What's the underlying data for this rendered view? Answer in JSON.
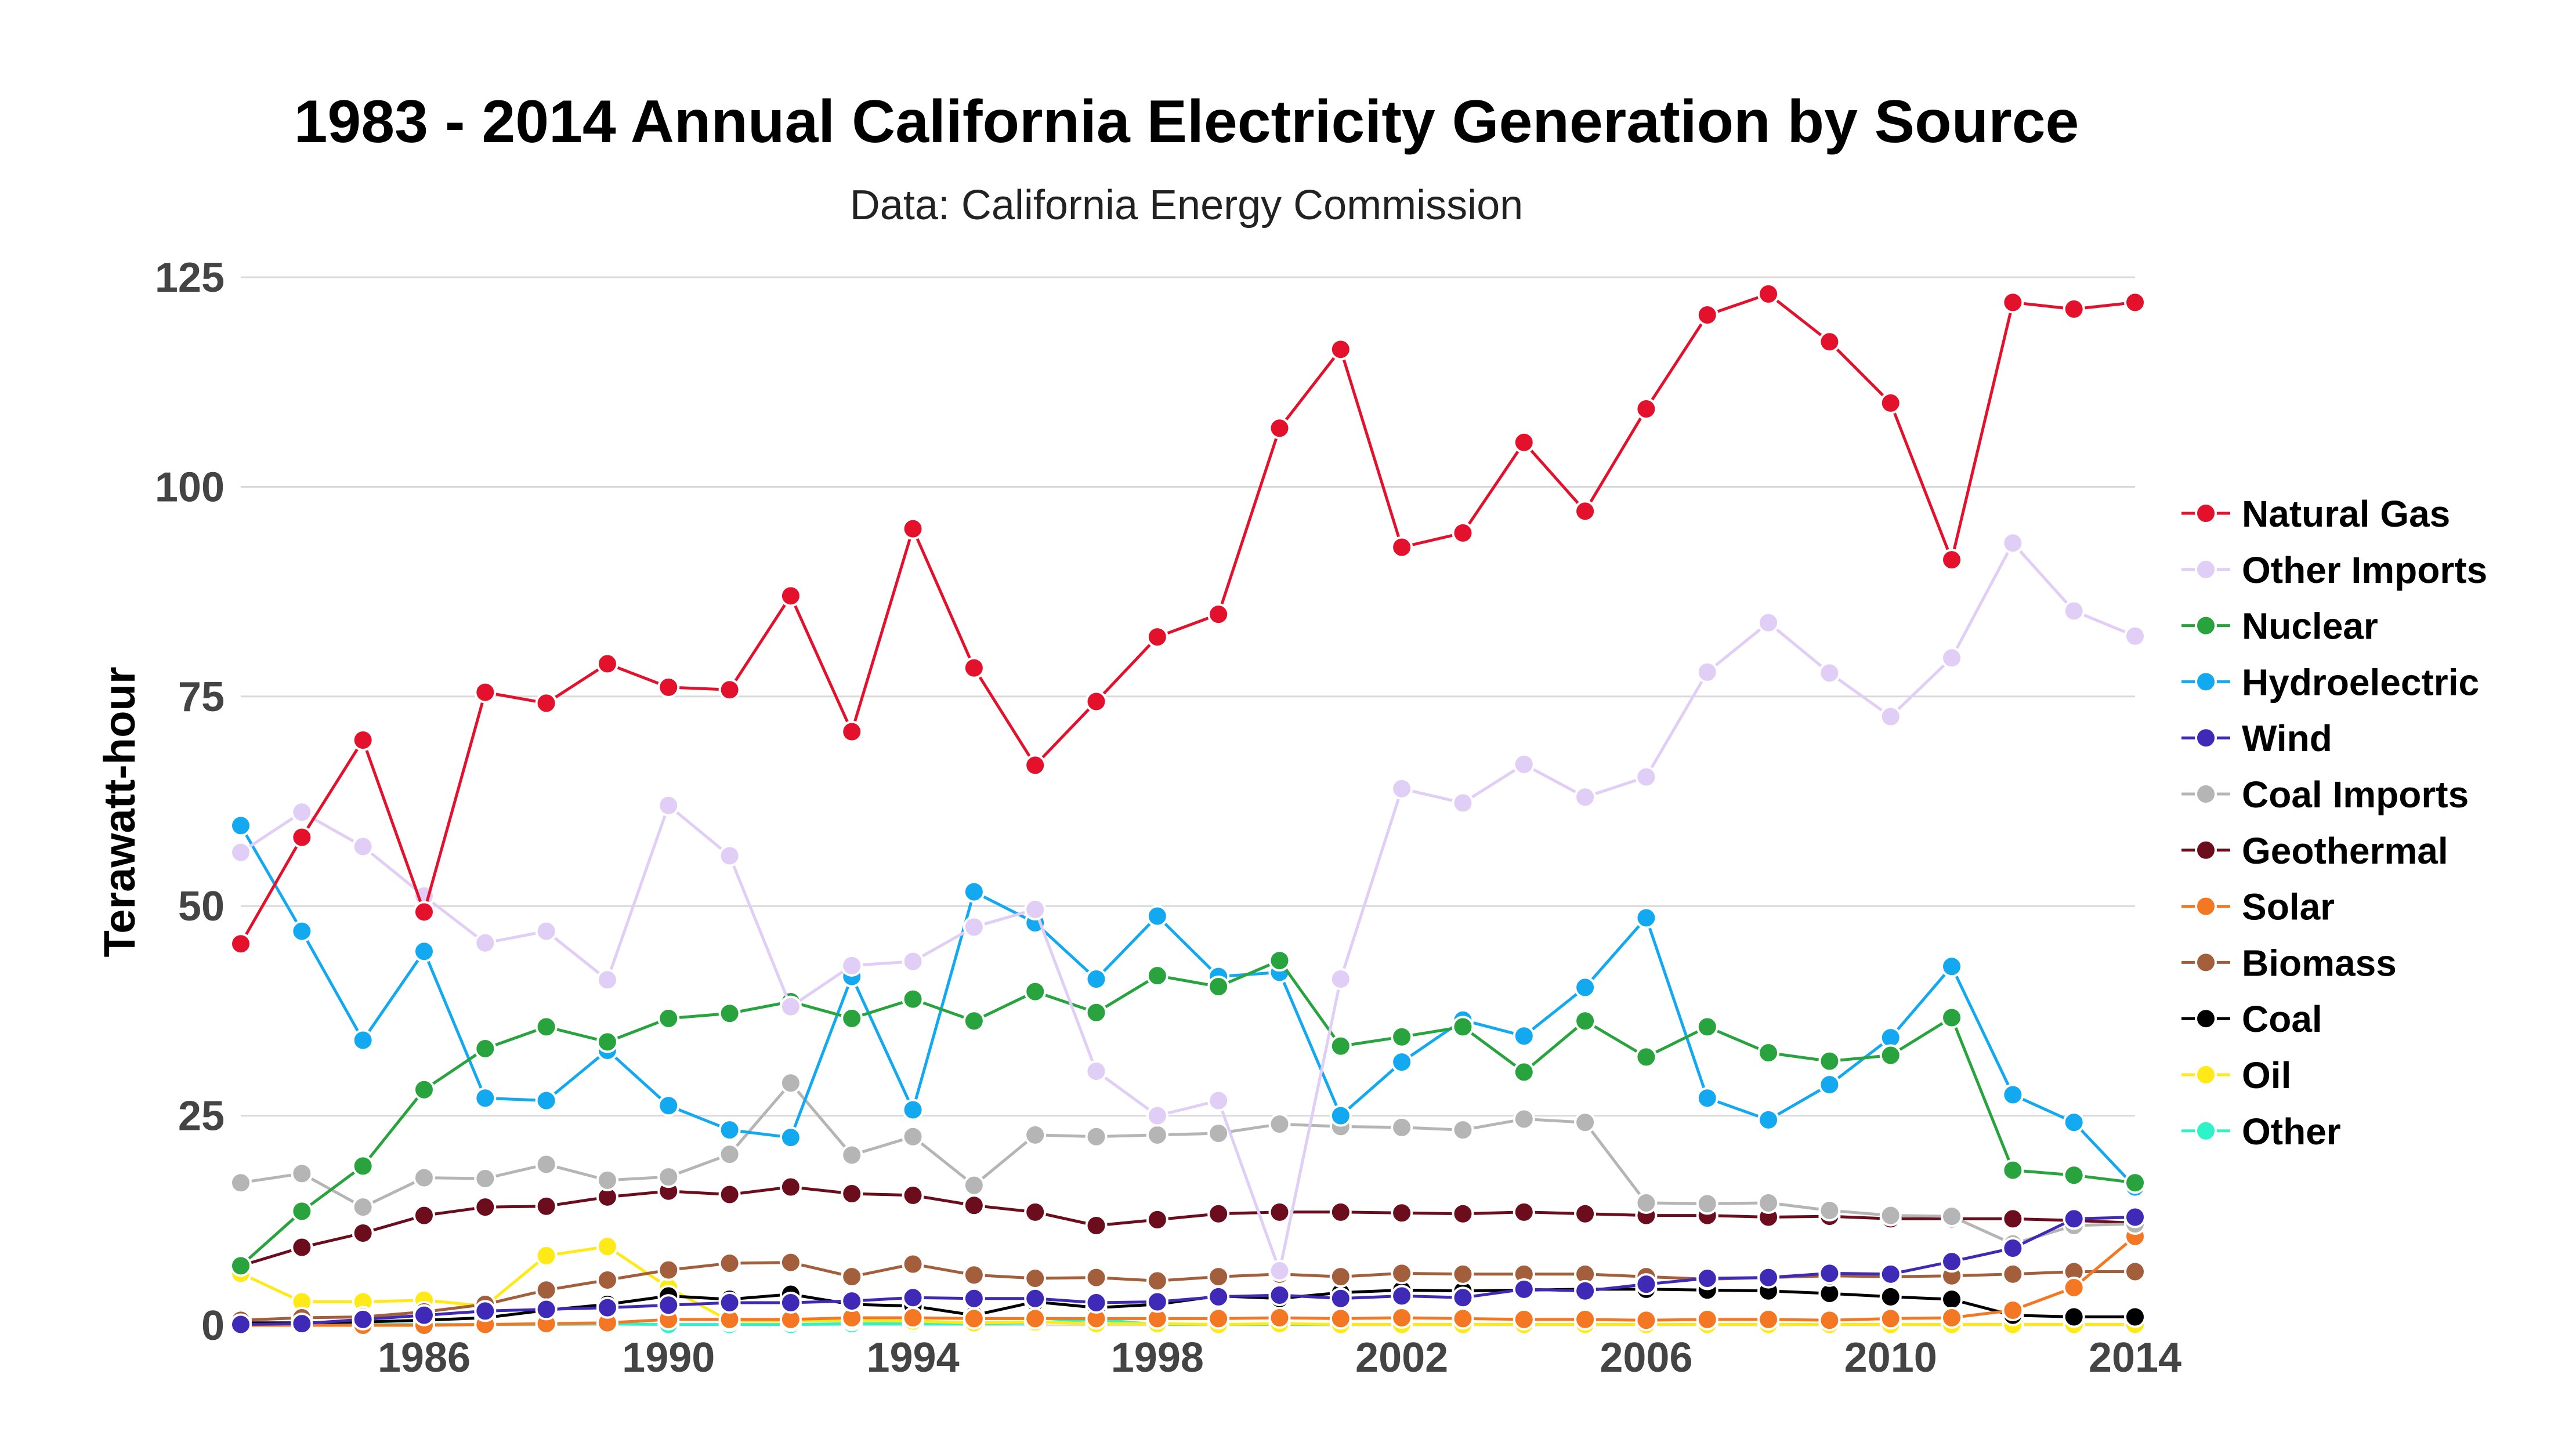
{
  "chart_data": {
    "type": "line",
    "title": "1983 - 2014 Annual California Electricity Generation by Source",
    "subtitle": "Data: California Energy Commission",
    "xlabel": "",
    "ylabel": "Terawatt-hour",
    "xlim": [
      1983,
      2014
    ],
    "ylim": [
      0,
      125
    ],
    "xticks": [
      "1986",
      "1990",
      "1994",
      "1998",
      "2002",
      "2006",
      "2010",
      "2014"
    ],
    "yticks": [
      "0",
      "25",
      "50",
      "75",
      "100",
      "125"
    ],
    "grid": true,
    "legend_position": "right",
    "x": [
      1983,
      1984,
      1985,
      1986,
      1987,
      1988,
      1989,
      1990,
      1991,
      1992,
      1993,
      1994,
      1995,
      1996,
      1997,
      1998,
      1999,
      2000,
      2001,
      2002,
      2003,
      2004,
      2005,
      2006,
      2007,
      2008,
      2009,
      2010,
      2011,
      2012,
      2013,
      2014
    ],
    "series": [
      {
        "name": "Natural Gas",
        "color": "#e4112d",
        "values": [
          45.5,
          58.2,
          69.8,
          49.3,
          75.5,
          74.2,
          78.9,
          76.1,
          75.8,
          87,
          70.8,
          95,
          78.4,
          66.8,
          74.4,
          82.1,
          84.8,
          107,
          116.4,
          92.8,
          94.5,
          105.3,
          97.1,
          109.3,
          120.5,
          123,
          117.3,
          110,
          91.3,
          122,
          121.2,
          122
        ]
      },
      {
        "name": "Other Imports",
        "color": "#e0cef7",
        "values": [
          56.4,
          61.2,
          57.1,
          51.2,
          45.6,
          47,
          41.2,
          62,
          56,
          38,
          42.9,
          43.4,
          47.5,
          49.6,
          30.3,
          25,
          26.8,
          6.5,
          41.3,
          64,
          62.3,
          66.9,
          63,
          65.4,
          77.9,
          83.8,
          77.8,
          72.6,
          79.6,
          93.3,
          85.2,
          82.2
        ]
      },
      {
        "name": "Nuclear",
        "color": "#28a33e",
        "values": [
          7.1,
          13.6,
          19,
          28.1,
          33,
          35.6,
          33.8,
          36.6,
          37.2,
          38.6,
          36.6,
          38.9,
          36.3,
          39.8,
          37.3,
          41.7,
          40.4,
          43.5,
          33.3,
          34.4,
          35.6,
          30.2,
          36.3,
          32,
          35.6,
          32.5,
          31.5,
          32.2,
          36.7,
          18.5,
          17.9,
          17
        ]
      },
      {
        "name": "Hydroelectric",
        "color": "#13a9f0",
        "values": [
          59.6,
          47,
          34,
          44.6,
          27.1,
          26.8,
          32.8,
          26.2,
          23.3,
          22.4,
          41.6,
          25.7,
          51.7,
          48,
          41.3,
          48.8,
          41.6,
          42.1,
          25,
          31.4,
          36.4,
          34.5,
          40.3,
          48.6,
          27.1,
          24.5,
          28.7,
          34.3,
          42.8,
          27.5,
          24.2,
          16.5
        ]
      },
      {
        "name": "Wind",
        "color": "#3f2ab8",
        "values": [
          0.1,
          0.2,
          0.7,
          1.2,
          1.7,
          1.9,
          2.1,
          2.4,
          2.7,
          2.7,
          2.9,
          3.3,
          3.2,
          3.2,
          2.7,
          2.8,
          3.4,
          3.6,
          3.2,
          3.5,
          3.3,
          4.3,
          4.1,
          4.9,
          5.6,
          5.7,
          6.2,
          6.1,
          7.6,
          9.2,
          12.7,
          12.9
        ]
      },
      {
        "name": "Coal Imports",
        "color": "#b5b5b5",
        "values": [
          17,
          18.1,
          14.1,
          17.6,
          17.5,
          19.2,
          17.3,
          17.7,
          20.4,
          28.9,
          20.3,
          22.5,
          16.7,
          22.7,
          22.5,
          22.7,
          22.9,
          24,
          23.7,
          23.6,
          23.3,
          24.6,
          24.2,
          14.6,
          14.5,
          14.6,
          13.7,
          13.1,
          13,
          9.7,
          11.9,
          12.1
        ]
      },
      {
        "name": "Geothermal",
        "color": "#6b0d1c",
        "values": [
          7.1,
          9.3,
          11,
          13.1,
          14.1,
          14.2,
          15.3,
          16,
          15.6,
          16.5,
          15.7,
          15.5,
          14.3,
          13.5,
          11.9,
          12.6,
          13.3,
          13.5,
          13.5,
          13.4,
          13.3,
          13.5,
          13.3,
          13.1,
          13.1,
          12.9,
          13,
          12.7,
          12.7,
          12.7,
          12.5,
          12.2
        ]
      },
      {
        "name": "Solar",
        "color": "#f47823",
        "values": [
          0,
          0,
          0,
          0,
          0.1,
          0.2,
          0.3,
          0.7,
          0.7,
          0.7,
          0.9,
          0.9,
          0.8,
          0.8,
          0.8,
          0.8,
          0.8,
          0.9,
          0.8,
          0.9,
          0.8,
          0.7,
          0.7,
          0.6,
          0.7,
          0.7,
          0.6,
          0.8,
          0.9,
          1.8,
          4.5,
          10.6
        ]
      },
      {
        "name": "Biomass",
        "color": "#a35f3c",
        "values": [
          0.6,
          0.9,
          1,
          1.6,
          2.5,
          4.2,
          5.4,
          6.6,
          7.4,
          7.5,
          5.8,
          7.3,
          6,
          5.6,
          5.7,
          5.3,
          5.8,
          6.1,
          5.8,
          6.2,
          6.1,
          6.1,
          6.1,
          5.8,
          5.5,
          5.7,
          5.9,
          5.8,
          5.9,
          6.1,
          6.4,
          6.4
        ]
      },
      {
        "name": "Coal",
        "color": "#000000",
        "values": [
          0.3,
          0.3,
          0.4,
          0.6,
          0.9,
          1.8,
          2.5,
          3.5,
          3.1,
          3.7,
          2.5,
          2.3,
          1.2,
          2.8,
          2.1,
          2.5,
          3.5,
          3.2,
          3.9,
          4.2,
          4.1,
          4.2,
          4.3,
          4.3,
          4.2,
          4.1,
          3.8,
          3.4,
          3.1,
          1.2,
          1,
          1
        ]
      },
      {
        "name": "Oil",
        "color": "#ffea17",
        "values": [
          6.2,
          2.8,
          2.8,
          3,
          2.3,
          8.3,
          9.4,
          4.5,
          0.5,
          0.5,
          0.6,
          0.5,
          0.3,
          0.4,
          0.2,
          0.2,
          0.1,
          0.2,
          0.1,
          0.1,
          0.1,
          0.1,
          0.1,
          0.1,
          0.1,
          0.1,
          0.1,
          0.1,
          0.1,
          0.1,
          0.1,
          0.1
        ]
      },
      {
        "name": "Other",
        "color": "#2df4c8",
        "values": [
          0.1,
          0.1,
          0.1,
          0.1,
          0.1,
          0.1,
          0.2,
          0.1,
          0.1,
          0.1,
          0.2,
          0.2,
          0.2,
          0.3,
          0.7,
          0.1,
          0.1,
          0.1,
          0.1,
          0.1,
          0.1,
          0.1,
          0.1,
          0.1,
          0.1,
          0.1,
          0.1,
          0.1,
          0.1,
          0.1,
          0.1,
          0.1
        ]
      }
    ]
  }
}
